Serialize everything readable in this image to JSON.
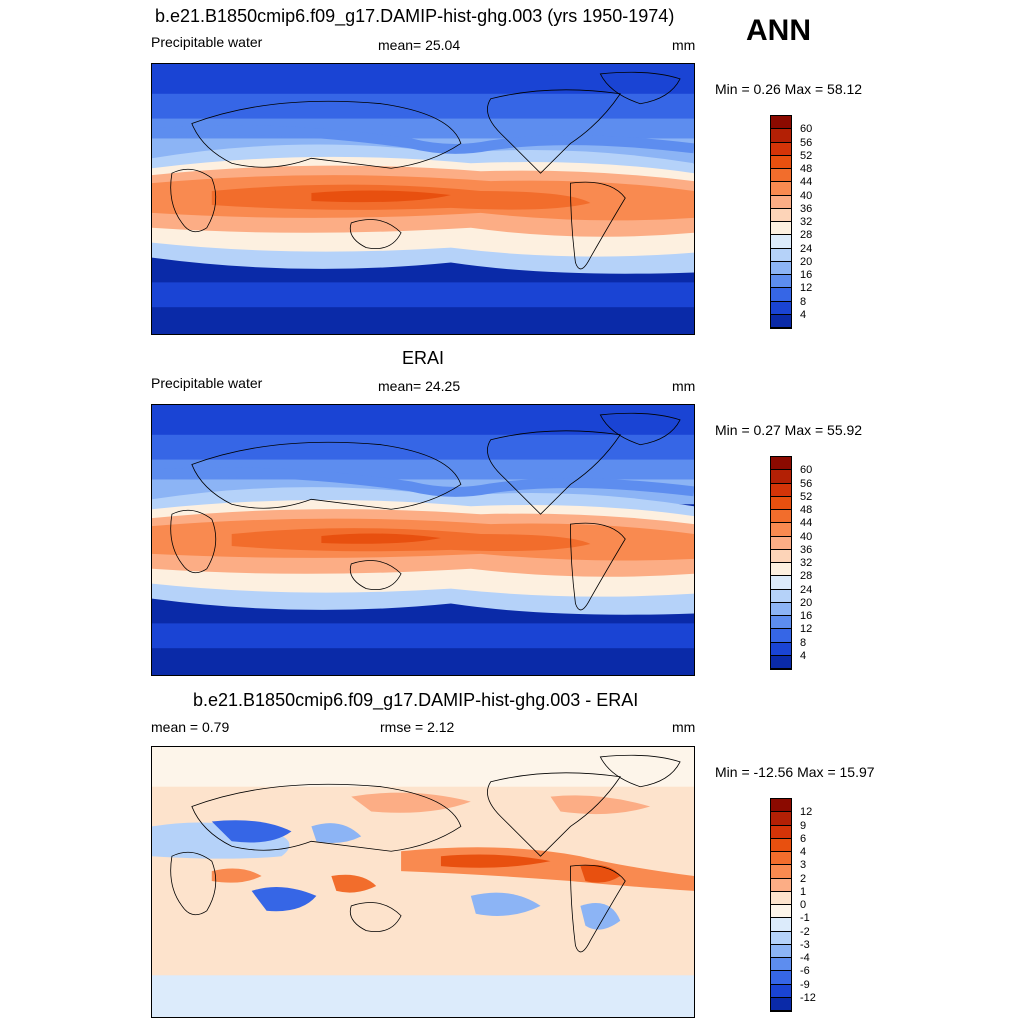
{
  "season": "ANN",
  "panels": [
    {
      "title": "b.e21.B1850cmip6.f09_g17.DAMIP-hist-ghg.003 (yrs 1950-1974)",
      "left_label": "Precipitable water",
      "center_label": "mean=  25.04",
      "units": "mm",
      "minmax": "Min =   0.26 Max =  58.12",
      "scale": "abs"
    },
    {
      "title": "ERAI",
      "left_label": "Precipitable water",
      "center_label": "mean=  24.25",
      "units": "mm",
      "minmax": "Min =   0.27 Max =  55.92",
      "scale": "abs"
    },
    {
      "title": "b.e21.B1850cmip6.f09_g17.DAMIP-hist-ghg.003 - ERAI",
      "left_label": "mean =   0.79",
      "center_label": "rmse =   2.12",
      "units": "mm",
      "minmax": "Min = -12.56 Max =  15.97",
      "scale": "diff"
    }
  ],
  "colorbars": {
    "abs": {
      "labels": [
        "60",
        "56",
        "52",
        "48",
        "44",
        "40",
        "36",
        "32",
        "28",
        "24",
        "20",
        "16",
        "12",
        "8",
        "4"
      ],
      "colors": [
        "#8b0a00",
        "#b32005",
        "#d43408",
        "#e8500f",
        "#f26d2c",
        "#f98a50",
        "#fcad85",
        "#fdd4b8",
        "#fdf0e0",
        "#dcebfb",
        "#b5d2f9",
        "#8cb4f5",
        "#5d8def",
        "#3666e6",
        "#1a44d4",
        "#0a2aa8"
      ]
    },
    "diff": {
      "labels": [
        "12",
        "9",
        "6",
        "4",
        "3",
        "2",
        "1",
        "0",
        "-1",
        "-2",
        "-3",
        "-4",
        "-6",
        "-9",
        "-12"
      ],
      "colors": [
        "#8b0a00",
        "#b32005",
        "#d43408",
        "#e8500f",
        "#f26d2c",
        "#f98a50",
        "#fcad85",
        "#fde3cc",
        "#fdf5ea",
        "#dcebfb",
        "#b5d2f9",
        "#8cb4f5",
        "#5d8def",
        "#3666e6",
        "#1a44d4",
        "#0a2aa8"
      ]
    }
  }
}
